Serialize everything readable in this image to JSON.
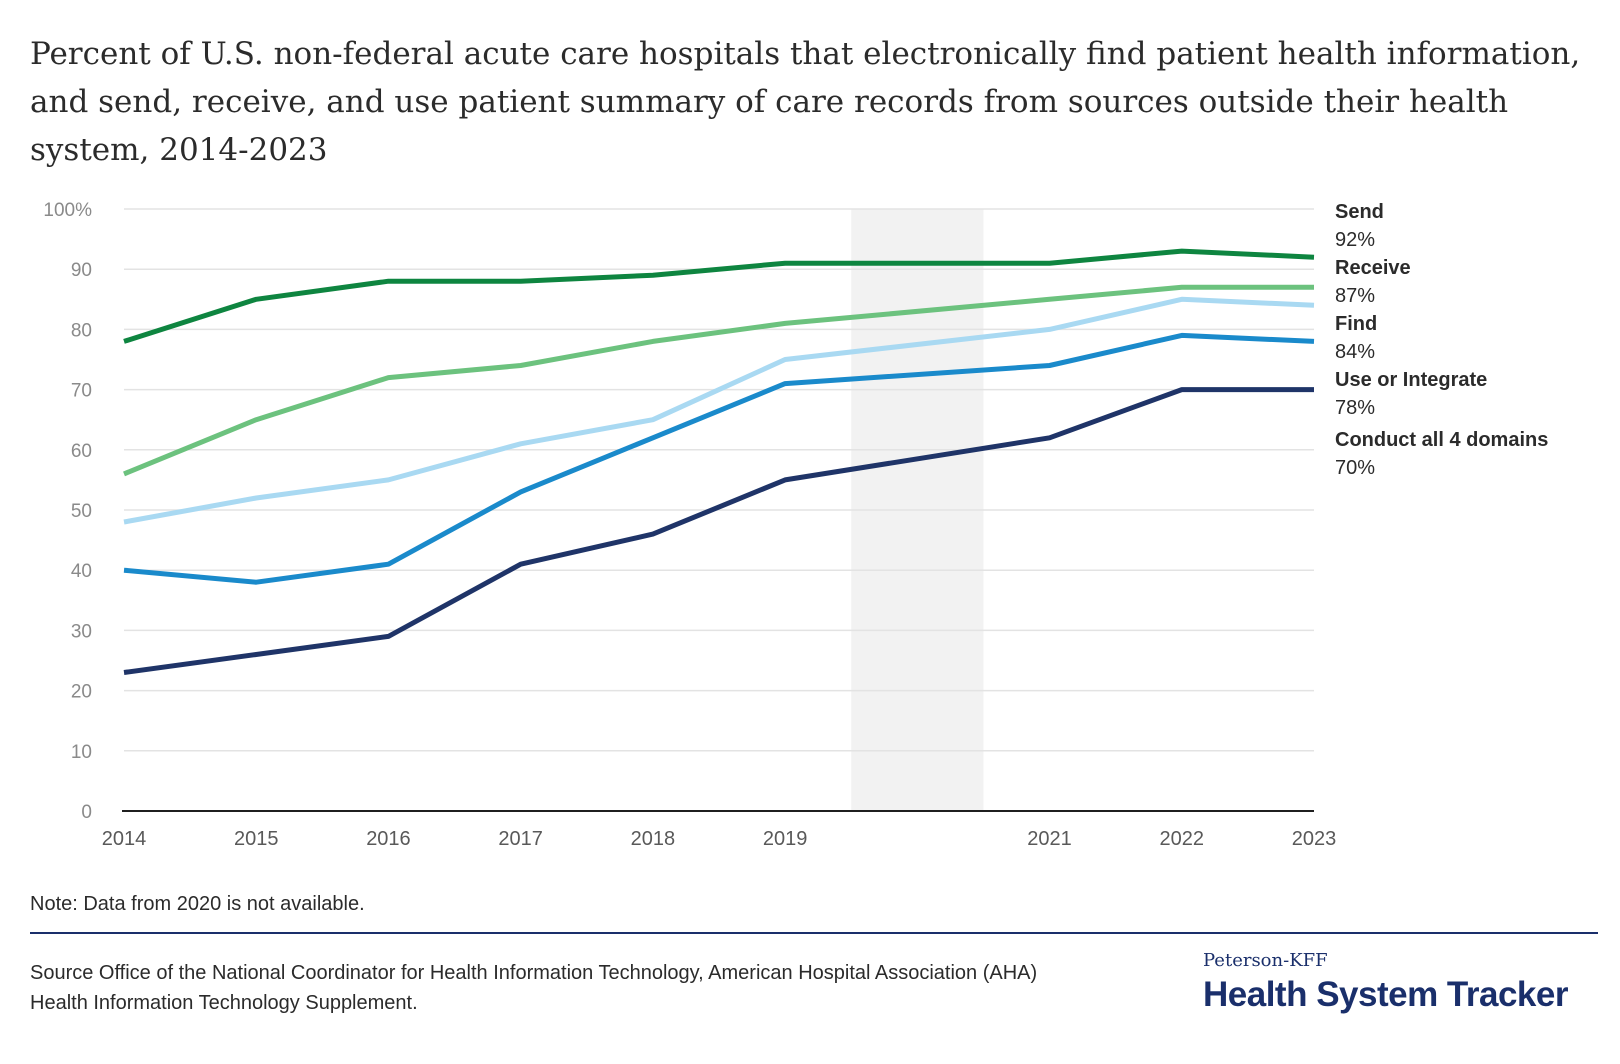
{
  "title": "Percent of U.S. non-federal acute care hospitals that electronically find patient health information, and send, receive, and use patient summary of care records from sources outside their health system, 2014-2023",
  "note": "Note: Data from 2020 is not available.",
  "source": "Source Office of the National Coordinator for Health Information Technology, American Hospital Association (AHA) Health Information Technology Supplement.",
  "logo": {
    "top": "Peterson-KFF",
    "main": "Health System Tracker"
  },
  "colors": {
    "gridline": "#e3e3e3",
    "axis": "#1f1f1f",
    "gap_band": "#f2f2f2"
  },
  "chart_data": {
    "type": "line",
    "title": "Percent of U.S. non-federal acute care hospitals that electronically find patient health information, and send, receive, and use patient summary of care records from sources outside their health system, 2014-2023",
    "xlabel": "",
    "ylabel": "",
    "x": [
      2014,
      2015,
      2016,
      2017,
      2018,
      2019,
      2021,
      2022,
      2023
    ],
    "x_tick_labels": [
      "2014",
      "2015",
      "2016",
      "2017",
      "2018",
      "2019",
      "2021",
      "2022",
      "2023"
    ],
    "xlim": [
      2014,
      2023
    ],
    "ylim": [
      0,
      100
    ],
    "y_ticks": [
      0,
      10,
      20,
      30,
      40,
      50,
      60,
      70,
      80,
      90,
      100
    ],
    "y_tick_labels": [
      "0",
      "10",
      "20",
      "30",
      "40",
      "50",
      "60",
      "70",
      "80",
      "90",
      "100%"
    ],
    "grid": true,
    "missing_band": {
      "from": 2019.5,
      "to": 2020.5,
      "label": "Data from 2020 is not available."
    },
    "legend": "right (direct labels)",
    "series": [
      {
        "name": "Send",
        "label_value": "92%",
        "color": "#0e8540",
        "values": [
          78,
          85,
          88,
          88,
          89,
          91,
          91,
          93,
          92
        ]
      },
      {
        "name": "Receive",
        "label_value": "87%",
        "color": "#6cc27e",
        "values": [
          56,
          65,
          72,
          74,
          78,
          81,
          85,
          87,
          87
        ]
      },
      {
        "name": "Find",
        "label_value": "84%",
        "color": "#a9d9f2",
        "values": [
          48,
          52,
          55,
          61,
          65,
          75,
          80,
          85,
          84
        ]
      },
      {
        "name": "Use or Integrate",
        "label_value": "78%",
        "color": "#1a8acb",
        "values": [
          40,
          38,
          41,
          53,
          62,
          71,
          74,
          79,
          78
        ]
      },
      {
        "name": "Conduct all 4 domains",
        "label_value": "70%",
        "color": "#1f3468",
        "values": [
          23,
          26,
          29,
          41,
          46,
          55,
          62,
          70,
          70
        ]
      }
    ]
  }
}
